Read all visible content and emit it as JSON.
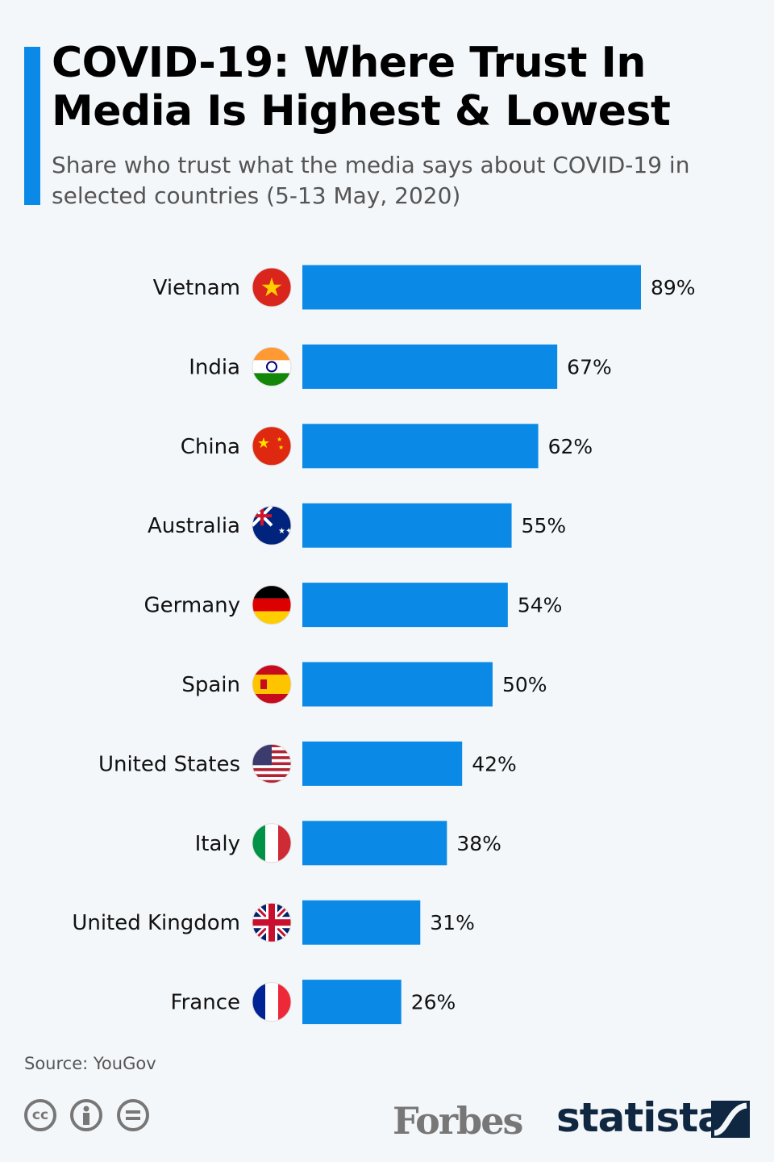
{
  "header": {
    "title": "COVID-19: Where Trust In Media Is Highest & Lowest",
    "subtitle": "Share who trust what the media says about COVID-19 in selected countries (5-13 May, 2020)"
  },
  "chart_data": {
    "type": "bar",
    "orientation": "horizontal",
    "categories": [
      "Vietnam",
      "India",
      "China",
      "Australia",
      "Germany",
      "Spain",
      "United States",
      "Italy",
      "United Kingdom",
      "France"
    ],
    "values": [
      89,
      67,
      62,
      55,
      54,
      50,
      42,
      38,
      31,
      26
    ],
    "value_labels": [
      "89%",
      "67%",
      "62%",
      "55%",
      "54%",
      "50%",
      "42%",
      "38%",
      "31%",
      "26%"
    ],
    "unit": "%",
    "bar_color": "#0a8ae6",
    "grid": false,
    "flags": [
      {
        "country": "Vietnam",
        "colors": [
          "#da251d",
          "#ffcd00"
        ]
      },
      {
        "country": "India",
        "colors": [
          "#ff9933",
          "#ffffff",
          "#138808",
          "#000080"
        ]
      },
      {
        "country": "China",
        "colors": [
          "#de2910",
          "#ffde00"
        ]
      },
      {
        "country": "Australia",
        "colors": [
          "#00247d",
          "#ffffff",
          "#cf142b"
        ]
      },
      {
        "country": "Germany",
        "colors": [
          "#000000",
          "#dd0000",
          "#ffce00"
        ]
      },
      {
        "country": "Spain",
        "colors": [
          "#c60b1e",
          "#ffc400"
        ]
      },
      {
        "country": "United States",
        "colors": [
          "#b22234",
          "#ffffff",
          "#3c3b6e"
        ]
      },
      {
        "country": "Italy",
        "colors": [
          "#009246",
          "#ffffff",
          "#ce2b37"
        ]
      },
      {
        "country": "United Kingdom",
        "colors": [
          "#012169",
          "#ffffff",
          "#c8102e"
        ]
      },
      {
        "country": "France",
        "colors": [
          "#002395",
          "#ffffff",
          "#ed2939"
        ]
      }
    ]
  },
  "footer": {
    "source": "Source: YouGov",
    "license_icons": [
      "cc-icon",
      "attribution-icon",
      "no-derivatives-icon"
    ],
    "cc_text": "cc",
    "brand_partner": "Forbes",
    "brand": "statista"
  }
}
